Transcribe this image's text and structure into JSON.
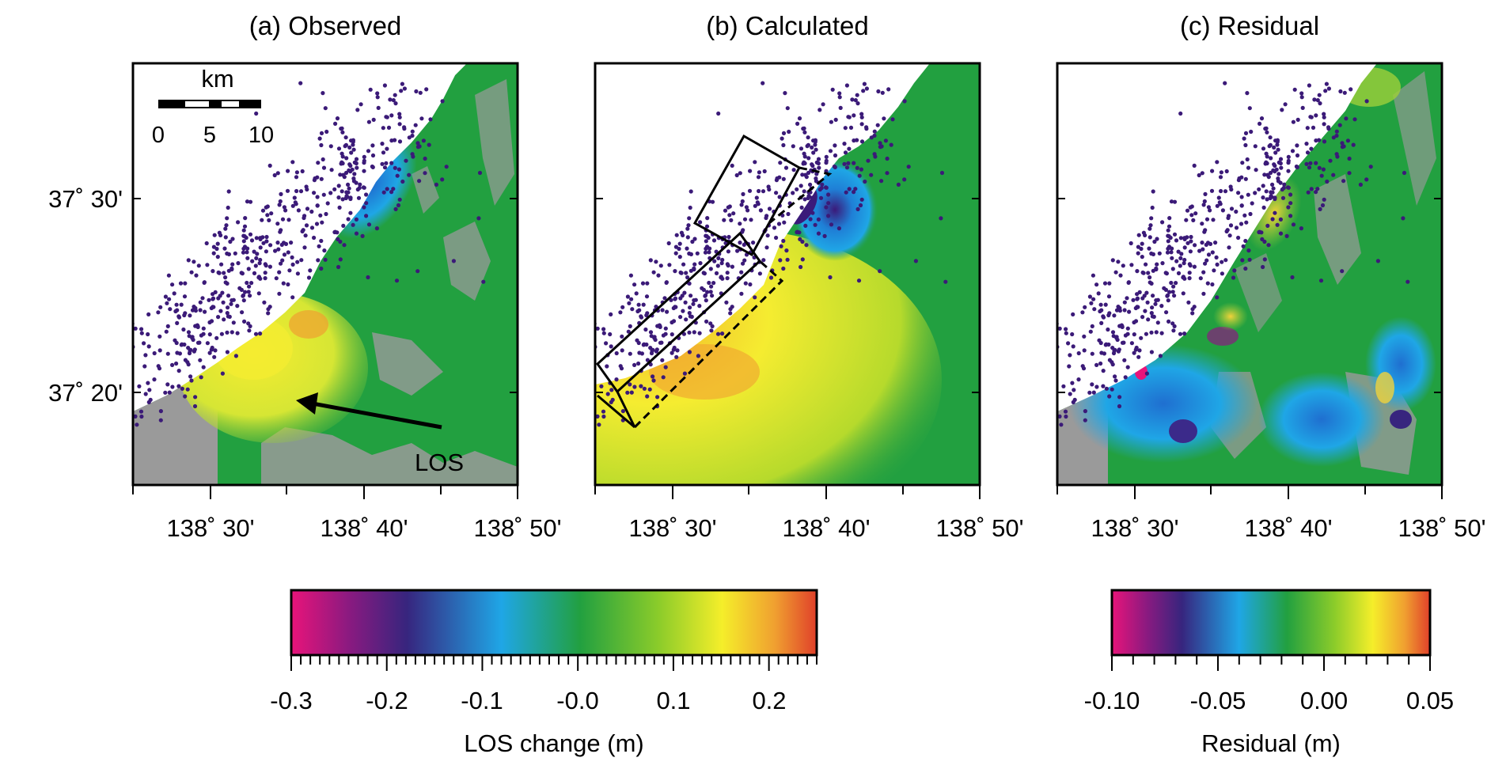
{
  "panels": [
    {
      "title": "(a) Observed"
    },
    {
      "title": "(b) Calculated"
    },
    {
      "title": "(c) Residual"
    }
  ],
  "lat_labels": [
    "37˚ 30'",
    "37˚ 20'"
  ],
  "lon_labels": [
    "138˚ 30'",
    "138˚ 40'",
    "138˚ 50'"
  ],
  "scale_bar": {
    "unit": "km",
    "ticks": [
      "0",
      "5",
      "10"
    ]
  },
  "los_label": "LOS",
  "colorbar_los": {
    "label": "LOS change (m)",
    "range": [
      -0.3,
      0.25
    ],
    "ticks": [
      "-0.3",
      "-0.2",
      "-0.1",
      "-0.0",
      "0.1",
      "0.2"
    ]
  },
  "colorbar_residual": {
    "label": "Residual (m)",
    "range": [
      -0.1,
      0.05
    ],
    "ticks": [
      "-0.10",
      "-0.05",
      "0.00",
      "0.05"
    ]
  },
  "colors": {
    "no_data": "#9a9a9a",
    "earthquake": "#3b1a78",
    "ramp": [
      "#e8147a",
      "#7a1a80",
      "#37257e",
      "#1fa6e6",
      "#22a040",
      "#8ccc2a",
      "#f5ee2a",
      "#f0a030",
      "#e0402a"
    ]
  }
}
